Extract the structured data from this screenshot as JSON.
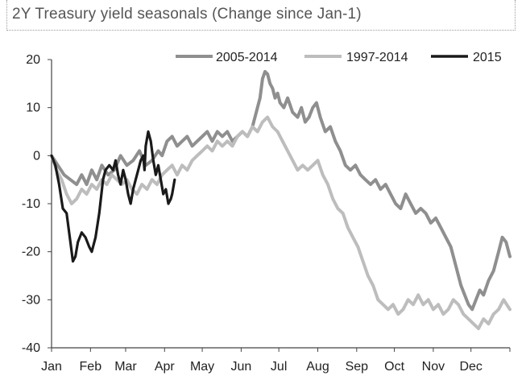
{
  "chart_data": {
    "type": "line",
    "title": "2Y Treasury yield seasonals (Change since Jan-1)",
    "xlabel": "",
    "ylabel": "",
    "ylim": [
      -40,
      20
    ],
    "yticks": [
      20,
      10,
      0,
      -10,
      -20,
      -30,
      -40
    ],
    "xlim": [
      0,
      365
    ],
    "x_ticks": [
      {
        "label": "Jan",
        "day": 0
      },
      {
        "label": "Feb",
        "day": 31
      },
      {
        "label": "Mar",
        "day": 59
      },
      {
        "label": "Apr",
        "day": 90
      },
      {
        "label": "May",
        "day": 120
      },
      {
        "label": "Jun",
        "day": 151
      },
      {
        "label": "Jul",
        "day": 181
      },
      {
        "label": "Aug",
        "day": 212
      },
      {
        "label": "Sep",
        "day": 243
      },
      {
        "label": "Oct",
        "day": 273
      },
      {
        "label": "Nov",
        "day": 304
      },
      {
        "label": "Dec",
        "day": 334
      }
    ],
    "legend_position": "top",
    "series": [
      {
        "name": "2005-2014",
        "color": "#8f8f8f",
        "points": [
          [
            0,
            0
          ],
          [
            5,
            -2
          ],
          [
            10,
            -4
          ],
          [
            15,
            -5
          ],
          [
            20,
            -6
          ],
          [
            24,
            -4
          ],
          [
            28,
            -6
          ],
          [
            32,
            -3
          ],
          [
            36,
            -5
          ],
          [
            40,
            -2
          ],
          [
            45,
            -4
          ],
          [
            50,
            -3
          ],
          [
            55,
            0
          ],
          [
            60,
            -2
          ],
          [
            65,
            -1
          ],
          [
            70,
            1
          ],
          [
            75,
            -2
          ],
          [
            80,
            -1
          ],
          [
            85,
            1
          ],
          [
            88,
            0
          ],
          [
            92,
            3
          ],
          [
            96,
            4
          ],
          [
            100,
            2
          ],
          [
            104,
            3
          ],
          [
            108,
            4
          ],
          [
            112,
            2
          ],
          [
            116,
            3
          ],
          [
            120,
            4
          ],
          [
            124,
            5
          ],
          [
            128,
            3
          ],
          [
            132,
            5
          ],
          [
            136,
            4
          ],
          [
            140,
            5
          ],
          [
            144,
            3
          ],
          [
            148,
            4
          ],
          [
            152,
            5
          ],
          [
            156,
            4
          ],
          [
            160,
            6
          ],
          [
            163,
            9
          ],
          [
            166,
            12
          ],
          [
            168,
            16
          ],
          [
            170,
            17.5
          ],
          [
            172,
            17
          ],
          [
            174,
            15
          ],
          [
            176,
            14
          ],
          [
            178,
            12
          ],
          [
            180,
            13
          ],
          [
            182,
            11
          ],
          [
            185,
            10
          ],
          [
            188,
            12
          ],
          [
            192,
            9
          ],
          [
            196,
            8
          ],
          [
            199,
            10
          ],
          [
            202,
            7
          ],
          [
            205,
            8
          ],
          [
            208,
            10
          ],
          [
            211,
            11
          ],
          [
            214,
            8
          ],
          [
            218,
            5
          ],
          [
            222,
            6
          ],
          [
            226,
            3
          ],
          [
            230,
            1
          ],
          [
            234,
            -2
          ],
          [
            238,
            -3
          ],
          [
            242,
            -2
          ],
          [
            246,
            -4
          ],
          [
            250,
            -5
          ],
          [
            254,
            -6
          ],
          [
            258,
            -5
          ],
          [
            262,
            -7
          ],
          [
            266,
            -6
          ],
          [
            270,
            -8
          ],
          [
            274,
            -10
          ],
          [
            278,
            -11
          ],
          [
            282,
            -8
          ],
          [
            286,
            -10
          ],
          [
            290,
            -12
          ],
          [
            294,
            -11
          ],
          [
            298,
            -12
          ],
          [
            302,
            -14
          ],
          [
            306,
            -13
          ],
          [
            310,
            -15
          ],
          [
            314,
            -17
          ],
          [
            318,
            -19
          ],
          [
            322,
            -23
          ],
          [
            326,
            -27
          ],
          [
            329,
            -29
          ],
          [
            332,
            -31
          ],
          [
            335,
            -32
          ],
          [
            338,
            -30
          ],
          [
            341,
            -28
          ],
          [
            344,
            -29
          ],
          [
            348,
            -26
          ],
          [
            352,
            -24
          ],
          [
            356,
            -20
          ],
          [
            359,
            -17
          ],
          [
            362,
            -18
          ],
          [
            365,
            -21
          ]
        ]
      },
      {
        "name": "1997-2014",
        "color": "#bdbdbd",
        "points": [
          [
            0,
            0
          ],
          [
            4,
            -3
          ],
          [
            8,
            -5
          ],
          [
            12,
            -8
          ],
          [
            16,
            -10
          ],
          [
            20,
            -9
          ],
          [
            24,
            -7
          ],
          [
            28,
            -8
          ],
          [
            32,
            -6
          ],
          [
            36,
            -7
          ],
          [
            40,
            -5
          ],
          [
            44,
            -6
          ],
          [
            48,
            -4
          ],
          [
            52,
            -5
          ],
          [
            56,
            -6
          ],
          [
            60,
            -5
          ],
          [
            64,
            -7
          ],
          [
            68,
            -8
          ],
          [
            72,
            -6
          ],
          [
            76,
            -7
          ],
          [
            80,
            -5
          ],
          [
            84,
            -6
          ],
          [
            88,
            -4
          ],
          [
            92,
            -3
          ],
          [
            96,
            -2
          ],
          [
            100,
            -4
          ],
          [
            104,
            -2
          ],
          [
            108,
            -3
          ],
          [
            112,
            -1
          ],
          [
            116,
            0
          ],
          [
            120,
            1
          ],
          [
            124,
            2
          ],
          [
            128,
            1
          ],
          [
            132,
            3
          ],
          [
            136,
            2
          ],
          [
            140,
            3
          ],
          [
            144,
            2
          ],
          [
            148,
            4
          ],
          [
            152,
            5
          ],
          [
            156,
            4
          ],
          [
            160,
            6
          ],
          [
            164,
            5
          ],
          [
            168,
            7
          ],
          [
            172,
            8
          ],
          [
            176,
            6
          ],
          [
            180,
            5
          ],
          [
            184,
            3
          ],
          [
            188,
            1
          ],
          [
            192,
            -1
          ],
          [
            196,
            -3
          ],
          [
            200,
            -2
          ],
          [
            204,
            -3
          ],
          [
            208,
            -2
          ],
          [
            212,
            -1
          ],
          [
            216,
            -4
          ],
          [
            220,
            -6
          ],
          [
            224,
            -9
          ],
          [
            228,
            -11
          ],
          [
            232,
            -12
          ],
          [
            236,
            -15
          ],
          [
            240,
            -17
          ],
          [
            244,
            -19
          ],
          [
            248,
            -22
          ],
          [
            252,
            -25
          ],
          [
            256,
            -27
          ],
          [
            260,
            -30
          ],
          [
            264,
            -31
          ],
          [
            268,
            -32
          ],
          [
            272,
            -31
          ],
          [
            276,
            -33
          ],
          [
            280,
            -32
          ],
          [
            284,
            -30
          ],
          [
            288,
            -31
          ],
          [
            292,
            -29
          ],
          [
            296,
            -31
          ],
          [
            300,
            -30
          ],
          [
            304,
            -32
          ],
          [
            308,
            -31
          ],
          [
            312,
            -33
          ],
          [
            316,
            -32
          ],
          [
            320,
            -30
          ],
          [
            324,
            -31
          ],
          [
            328,
            -33
          ],
          [
            332,
            -34
          ],
          [
            336,
            -35
          ],
          [
            340,
            -36
          ],
          [
            344,
            -34
          ],
          [
            348,
            -35
          ],
          [
            352,
            -33
          ],
          [
            356,
            -32
          ],
          [
            360,
            -30
          ],
          [
            365,
            -32
          ]
        ]
      },
      {
        "name": "2015",
        "color": "#1a1a1a",
        "points": [
          [
            0,
            0
          ],
          [
            3,
            -2
          ],
          [
            6,
            -6
          ],
          [
            9,
            -11
          ],
          [
            12,
            -12
          ],
          [
            15,
            -18
          ],
          [
            17,
            -22
          ],
          [
            19,
            -21
          ],
          [
            21,
            -18
          ],
          [
            24,
            -16
          ],
          [
            27,
            -17
          ],
          [
            30,
            -19
          ],
          [
            32,
            -20
          ],
          [
            35,
            -17
          ],
          [
            38,
            -12
          ],
          [
            41,
            -5
          ],
          [
            43,
            -3
          ],
          [
            46,
            -2
          ],
          [
            49,
            -3
          ],
          [
            51,
            -1
          ],
          [
            53,
            -4
          ],
          [
            55,
            -6
          ],
          [
            57,
            -3
          ],
          [
            59,
            -5
          ],
          [
            61,
            -8
          ],
          [
            63,
            -10
          ],
          [
            65,
            -7
          ],
          [
            67,
            -5
          ],
          [
            69,
            -3
          ],
          [
            71,
            -1
          ],
          [
            73,
            0
          ],
          [
            74,
            -3
          ],
          [
            75,
            2
          ],
          [
            77,
            5
          ],
          [
            79,
            3
          ],
          [
            81,
            -1
          ],
          [
            83,
            -4
          ],
          [
            85,
            -2
          ],
          [
            87,
            -5
          ],
          [
            89,
            -8
          ],
          [
            91,
            -7
          ],
          [
            93,
            -10
          ],
          [
            95,
            -9
          ],
          [
            96,
            -8
          ],
          [
            98,
            -5
          ]
        ]
      }
    ]
  }
}
